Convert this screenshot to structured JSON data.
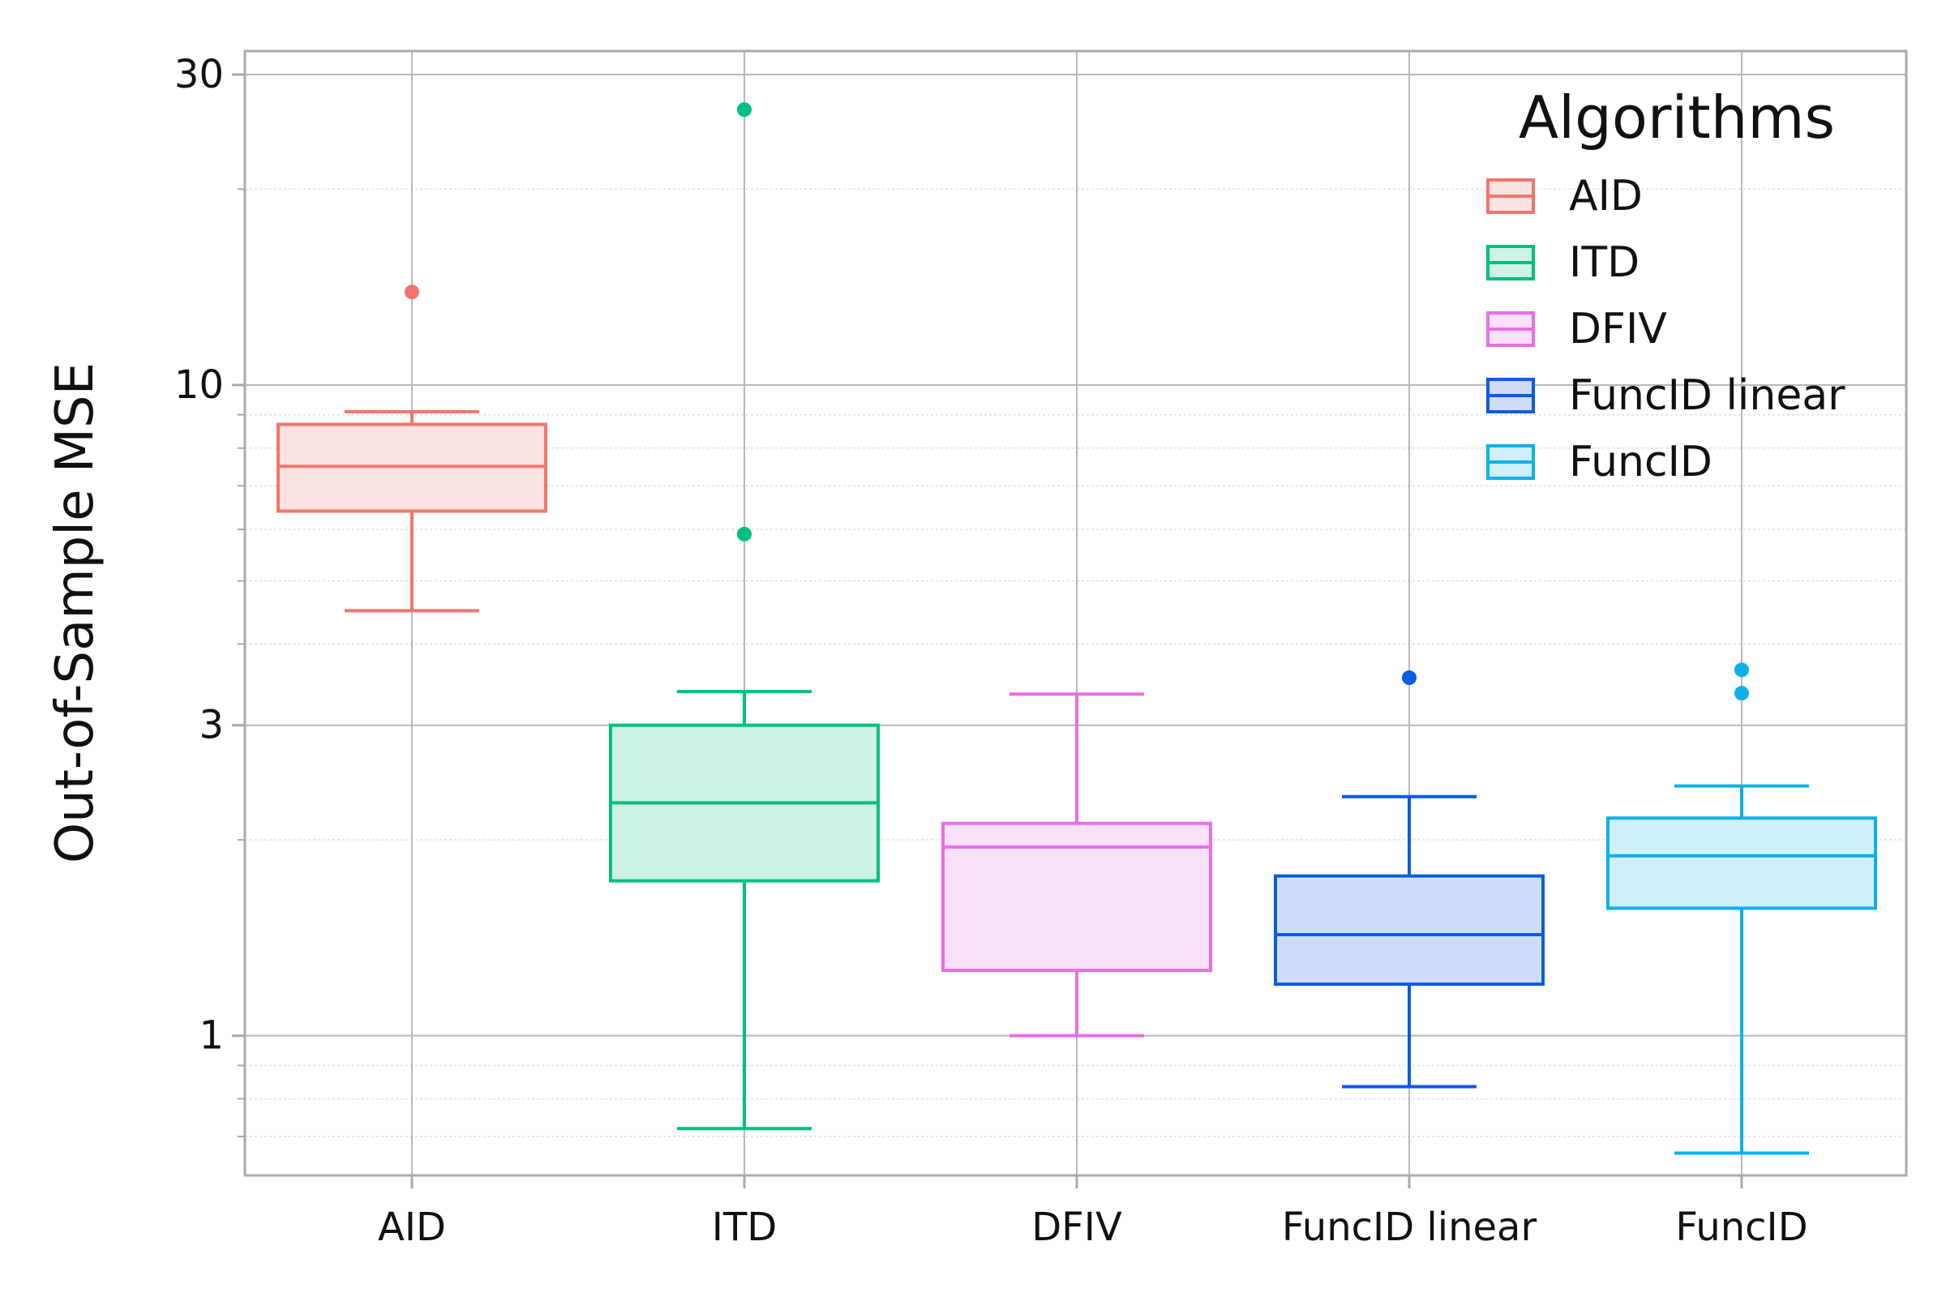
{
  "chart_data": {
    "type": "box",
    "title": "",
    "xlabel": "",
    "ylabel": "Out-of-Sample MSE",
    "yscale": "log",
    "ylim": [
      0.61,
      32.6
    ],
    "yticks": [
      1,
      3,
      10,
      30
    ],
    "ytick_labels": [
      "1",
      "3",
      "10",
      "30"
    ],
    "grid": true,
    "minor_grid": true,
    "categories": [
      "AID",
      "ITD",
      "DFIV",
      "FuncID linear",
      "FuncID"
    ],
    "series": [
      {
        "name": "AID",
        "color": "#F0766D",
        "fill": "#FCE3E2",
        "whisker_low": 4.5,
        "q1": 6.4,
        "median": 7.5,
        "q3": 8.7,
        "whisker_high": 9.1,
        "outliers": [
          13.9
        ]
      },
      {
        "name": "ITD",
        "color": "#00BE81",
        "fill": "#CCF1E5",
        "whisker_low": 0.72,
        "q1": 1.73,
        "median": 2.28,
        "q3": 3.0,
        "whisker_high": 3.38,
        "outliers": [
          26.5,
          5.9
        ]
      },
      {
        "name": "DFIV",
        "color": "#E76FE5",
        "fill": "#F9E2F9",
        "whisker_low": 1.0,
        "q1": 1.26,
        "median": 1.95,
        "q3": 2.12,
        "whisker_high": 3.35,
        "outliers": []
      },
      {
        "name": "FuncID linear",
        "color": "#0A5CE3",
        "fill": "#CEDEF9",
        "whisker_low": 0.835,
        "q1": 1.2,
        "median": 1.43,
        "q3": 1.76,
        "whisker_high": 2.33,
        "outliers": [
          3.55
        ]
      },
      {
        "name": "FuncID",
        "color": "#0DB1E8",
        "fill": "#CFEFFA",
        "whisker_low": 0.66,
        "q1": 1.57,
        "median": 1.89,
        "q3": 2.16,
        "whisker_high": 2.42,
        "outliers": [
          3.65,
          3.36
        ]
      }
    ],
    "legend": {
      "title": "Algorithms",
      "position": "top-right",
      "entries": [
        "AID",
        "ITD",
        "DFIV",
        "FuncID linear",
        "FuncID"
      ]
    }
  }
}
